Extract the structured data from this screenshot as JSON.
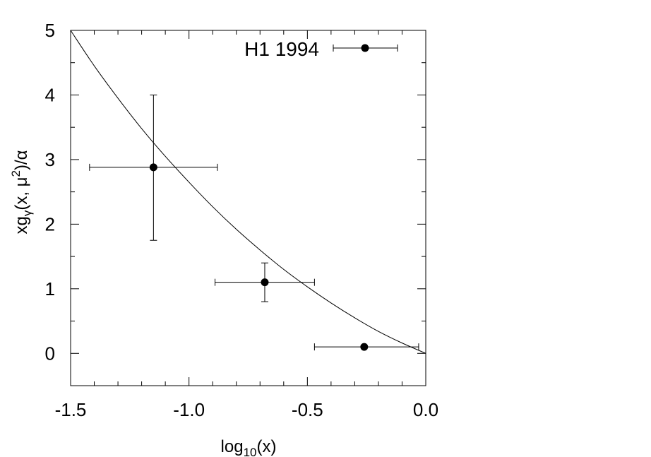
{
  "chart_data": {
    "type": "scatter",
    "xlabel": {
      "main": "log",
      "sub": "10",
      "tail": "(x)"
    },
    "ylabel": {
      "a": "xg",
      "sub": "γ",
      "b": "(x, μ",
      "sup": "2",
      "c": ")/α"
    },
    "xlim": [
      -1.5,
      0.0
    ],
    "ylim": [
      -0.5,
      5.0
    ],
    "x_ticks": [
      -1.5,
      -1.0,
      -0.5,
      0.0
    ],
    "x_tick_labels": [
      "-1.5",
      "-1.0",
      "-0.5",
      "0.0"
    ],
    "y_ticks": [
      0,
      1,
      2,
      3,
      4,
      5
    ],
    "y_tick_labels": [
      "0",
      "1",
      "2",
      "3",
      "4",
      "5"
    ],
    "grid": false,
    "legend_position": "top-right",
    "series": [
      {
        "name": "H1 1994",
        "points": [
          {
            "x": -1.15,
            "y": 2.88,
            "xerr_low": -1.42,
            "xerr_high": -0.88,
            "yerr_low": 1.75,
            "yerr_high": 4.0
          },
          {
            "x": -0.68,
            "y": 1.1,
            "xerr_low": -0.89,
            "xerr_high": -0.47,
            "yerr_low": 0.8,
            "yerr_high": 1.4
          },
          {
            "x": -0.26,
            "y": 0.1,
            "xerr_low": -0.47,
            "xerr_high": -0.03,
            "yerr_low": 0.1,
            "yerr_high": 0.1
          }
        ]
      }
    ],
    "curve": {
      "x": [
        -1.5,
        -1.4,
        -1.3,
        -1.2,
        -1.1,
        -1.0,
        -0.9,
        -0.8,
        -0.7,
        -0.6,
        -0.5,
        -0.4,
        -0.3,
        -0.2,
        -0.1,
        0.0
      ],
      "y": [
        5.0,
        4.45,
        3.95,
        3.48,
        3.05,
        2.65,
        2.27,
        1.92,
        1.6,
        1.3,
        1.03,
        0.78,
        0.55,
        0.34,
        0.16,
        0.0
      ]
    }
  }
}
